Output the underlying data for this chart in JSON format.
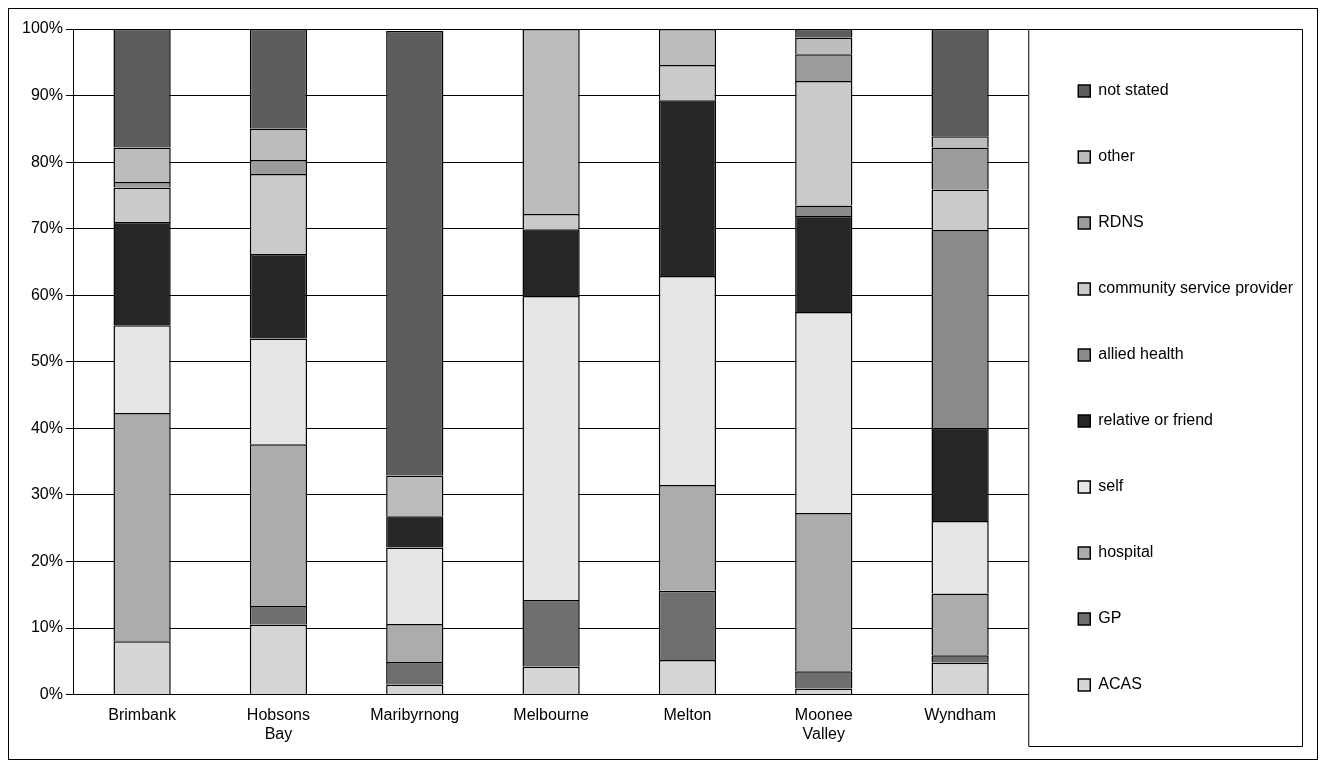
{
  "chart_data": {
    "type": "bar",
    "stacked": true,
    "categories": [
      "Brimbank",
      "Hobsons Bay",
      "Maribyrnong",
      "Melbourne",
      "Melton",
      "Moonee Valley",
      "Wyndham"
    ],
    "series": [
      {
        "name": "ACAS",
        "color": "#d6d6d6",
        "values": [
          8,
          10.5,
          1.5,
          4.2,
          5.2,
          0.9,
          4.8
        ]
      },
      {
        "name": "GP",
        "color": "#6e6e6e",
        "values": [
          0,
          2.8,
          3.4,
          10,
          10.4,
          2.6,
          1.1
        ]
      },
      {
        "name": "hospital",
        "color": "#acacac",
        "values": [
          34.3,
          24.3,
          5.7,
          0,
          15.9,
          23.8,
          9.3
        ]
      },
      {
        "name": "self",
        "color": "#e6e6e6",
        "values": [
          13.2,
          15.9,
          11.5,
          45.7,
          31.4,
          30.2,
          10.9
        ]
      },
      {
        "name": "relative or friend",
        "color": "#262626",
        "values": [
          15.5,
          12.7,
          4.7,
          10,
          26.4,
          14.4,
          13.9
        ]
      },
      {
        "name": "allied health",
        "color": "#8a8a8a",
        "values": [
          0,
          0,
          0,
          0,
          0,
          1.6,
          29.8
        ]
      },
      {
        "name": "community service provider",
        "color": "#cacaca",
        "values": [
          5.2,
          12,
          null,
          2.3,
          5.3,
          18.7,
          6.1
        ]
      },
      {
        "name": "RDNS",
        "color": "#9c9c9c",
        "values": [
          0.8,
          2.1,
          0,
          0,
          0,
          4,
          6.3
        ]
      },
      {
        "name": "other",
        "color": "#bcbcbc",
        "values": [
          5.2,
          4.7,
          6.1,
          27.8,
          5.4,
          2.5,
          1.7
        ]
      },
      {
        "name": "not stated",
        "color": "#5c5c5c",
        "values": [
          17.8,
          15,
          66.8,
          0,
          0,
          1.3,
          16.1
        ]
      }
    ],
    "ylim": [
      0,
      100
    ],
    "yticks": [
      {
        "value": 0,
        "label": "0%"
      },
      {
        "value": 10,
        "label": "10%"
      },
      {
        "value": 20,
        "label": "20%"
      },
      {
        "value": 30,
        "label": "30%"
      },
      {
        "value": 40,
        "label": "40%"
      },
      {
        "value": 50,
        "label": "50%"
      },
      {
        "value": 60,
        "label": "60%"
      },
      {
        "value": 70,
        "label": "70%"
      },
      {
        "value": 80,
        "label": "80%"
      },
      {
        "value": 90,
        "label": "90%"
      },
      {
        "value": 100,
        "label": "100%"
      }
    ],
    "grid": "y",
    "legend": "right"
  }
}
